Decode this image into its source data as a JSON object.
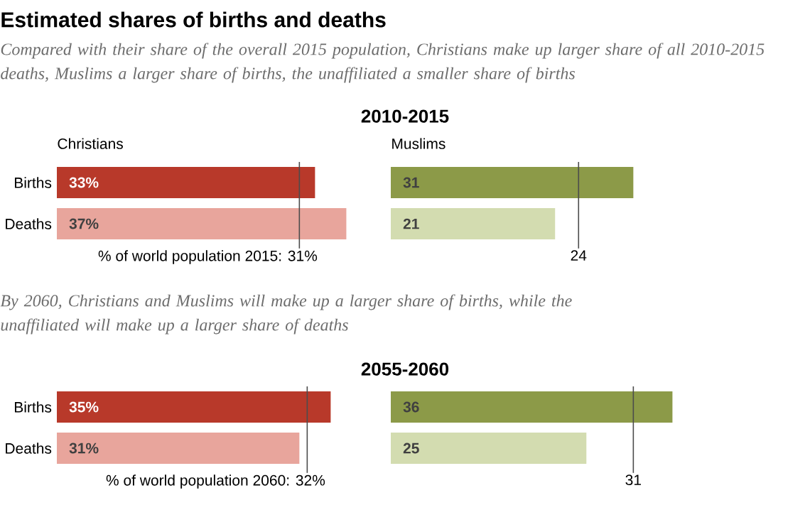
{
  "chart_data": [
    {
      "type": "bar",
      "orientation": "horizontal",
      "title": "Estimated shares of births and deaths",
      "subtitle": "Compared with their share of the overall 2015 population, Christians make up larger share of all 2010-2015 deaths, Muslims a larger share of births, the unaffiliated a smaller share of births",
      "annotations": [
        "2010-2015",
        "Christians"
      ],
      "categories": [
        "Births",
        "Deaths"
      ],
      "values": [
        33,
        37
      ],
      "colors": [
        "#b8392a",
        "#e8a59c"
      ],
      "value_labels": [
        "33%",
        "37%"
      ],
      "ref_lines": [
        {
          "axis": "x",
          "value": 31,
          "label": "% of world population 2015: 31%"
        }
      ]
    },
    {
      "type": "bar",
      "orientation": "horizontal",
      "annotations": [
        "Muslims"
      ],
      "categories": [
        null,
        null
      ],
      "values": [
        31,
        21
      ],
      "colors": [
        "#8c9a48",
        "#d3dcb0"
      ],
      "value_labels": [
        "31",
        "21"
      ],
      "ref_lines": [
        {
          "axis": "x",
          "value": 24,
          "label": "24"
        }
      ]
    },
    {
      "type": "bar",
      "orientation": "horizontal",
      "subtitle": "By 2060, Christians and Muslims will make up a larger share of births, while the unaffiliated will make up a larger share of deaths",
      "annotations": [
        "2055-2060"
      ],
      "categories": [
        "Births",
        "Deaths"
      ],
      "values": [
        35,
        31
      ],
      "colors": [
        "#b8392a",
        "#e8a59c"
      ],
      "value_labels": [
        "35%",
        "31%"
      ],
      "ref_lines": [
        {
          "axis": "x",
          "value": 32,
          "label": "% of world population 2060: 32%"
        }
      ]
    },
    {
      "type": "bar",
      "orientation": "horizontal",
      "categories": [
        null,
        null
      ],
      "values": [
        36,
        25
      ],
      "colors": [
        "#8c9a48",
        "#d3dcb0"
      ],
      "value_labels": [
        "36",
        "25"
      ],
      "ref_lines": [
        {
          "axis": "x",
          "value": 31,
          "label": "31"
        }
      ]
    }
  ]
}
